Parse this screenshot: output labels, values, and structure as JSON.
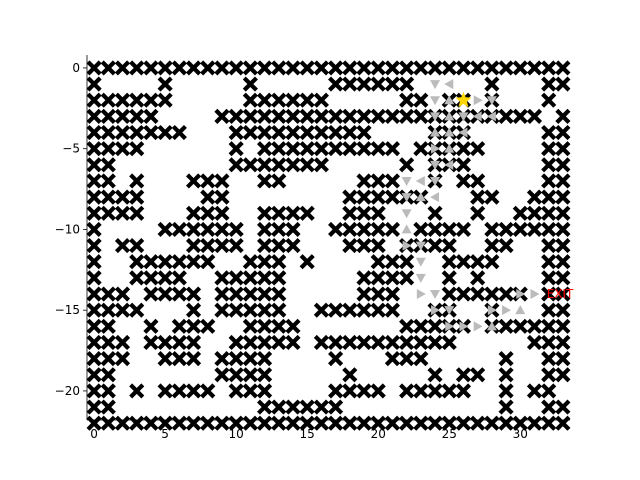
{
  "chart_data": {
    "type": "scatter",
    "title": "",
    "xlabel": "",
    "ylabel": "",
    "xlim": [
      -0.5,
      33.5
    ],
    "ylim": [
      -21.8,
      0.8
    ],
    "grid": false,
    "x_ticks": [
      0,
      5,
      10,
      15,
      20,
      25,
      30
    ],
    "y_ticks": [
      0,
      -5,
      -10,
      -15,
      -20
    ],
    "x_tick_labels": [
      "0",
      "5",
      "10",
      "15",
      "20",
      "25",
      "30"
    ],
    "y_tick_labels": [
      "0",
      "−5",
      "−10",
      "−15",
      "−20"
    ],
    "wall_color": "#000000",
    "path_color": "#bbbbbb",
    "start_color": "#ffd700",
    "exit_color": "#ff0000",
    "walls": [
      "##################################",
      "#....#.....#.....######.....#...##",
      "######.....######.....##.##.#...#",
      "#####....#######################.#",
      "#######...##########....###.....##",
      "####......#.##########.#####....##",
      "##........#######.....#.###.....##",
      "##.#...###..##.....###..#.##....##",
      "####....##........######...##..###",
      "####...###..####..###...#..#..####",
      "#....######.###..#####.####.######",
      "#.##...####.###...###.####..##..##",
      "#..######..###.#....###..####...##",
      "#..####..#####.....####..#.#....##",
      "###.####.#####.....###...######.##",
      "####...#.#####..######..##..#...##",
      "##..#.###..####.......#####.######",
      "###.####..#####.##########.....###",
      "###..###.####....#...###.....#..##",
      "##.......####.....#.....#.##.#..##",
      "##.#.####.###....####.#####..#.##.",
      "##..........######...........#..##",
      "##################################"
    ],
    "path": [
      {
        "x": 24,
        "y": -1,
        "dir": "down"
      },
      {
        "x": 25,
        "y": -1,
        "dir": "left"
      },
      {
        "x": 24,
        "y": -2,
        "dir": "down"
      },
      {
        "x": 25,
        "y": -2,
        "dir": "up"
      },
      {
        "x": 27,
        "y": -2,
        "dir": "right"
      },
      {
        "x": 28,
        "y": -2,
        "dir": "down"
      },
      {
        "x": 24,
        "y": -3,
        "dir": "down"
      },
      {
        "x": 25,
        "y": -3,
        "dir": "up"
      },
      {
        "x": 26,
        "y": -3,
        "dir": "down"
      },
      {
        "x": 27,
        "y": -3,
        "dir": "left"
      },
      {
        "x": 28,
        "y": -3,
        "dir": "left"
      },
      {
        "x": 24,
        "y": -4,
        "dir": "up"
      },
      {
        "x": 25,
        "y": -4,
        "dir": "up"
      },
      {
        "x": 26,
        "y": -4,
        "dir": "left"
      },
      {
        "x": 24,
        "y": -5,
        "dir": "right"
      },
      {
        "x": 25,
        "y": -5,
        "dir": "up"
      },
      {
        "x": 24,
        "y": -6,
        "dir": "down"
      },
      {
        "x": 25,
        "y": -6,
        "dir": "left"
      },
      {
        "x": 22,
        "y": -7,
        "dir": "down"
      },
      {
        "x": 23,
        "y": -7,
        "dir": "left"
      },
      {
        "x": 24,
        "y": -7,
        "dir": "down"
      },
      {
        "x": 22,
        "y": -8,
        "dir": "down"
      },
      {
        "x": 23,
        "y": -8,
        "dir": "up"
      },
      {
        "x": 24,
        "y": -8,
        "dir": "left"
      },
      {
        "x": 22,
        "y": -9,
        "dir": "down"
      },
      {
        "x": 22,
        "y": -10,
        "dir": "up"
      },
      {
        "x": 22,
        "y": -11,
        "dir": "right"
      },
      {
        "x": 23,
        "y": -11,
        "dir": "down"
      },
      {
        "x": 23,
        "y": -12,
        "dir": "down"
      },
      {
        "x": 23,
        "y": -13,
        "dir": "down"
      },
      {
        "x": 23,
        "y": -14,
        "dir": "right"
      },
      {
        "x": 24,
        "y": -14,
        "dir": "down"
      },
      {
        "x": 30,
        "y": -14,
        "dir": "right"
      },
      {
        "x": 31,
        "y": -14,
        "dir": "right"
      },
      {
        "x": 24,
        "y": -15,
        "dir": "right"
      },
      {
        "x": 25,
        "y": -15,
        "dir": "down"
      },
      {
        "x": 28,
        "y": -15,
        "dir": "right"
      },
      {
        "x": 29,
        "y": -15,
        "dir": "right"
      },
      {
        "x": 30,
        "y": -15,
        "dir": "up"
      },
      {
        "x": 25,
        "y": -16,
        "dir": "right"
      },
      {
        "x": 26,
        "y": -16,
        "dir": "right"
      },
      {
        "x": 27,
        "y": -16,
        "dir": "right"
      },
      {
        "x": 28,
        "y": -16,
        "dir": "up"
      }
    ],
    "start": {
      "x": 26,
      "y": -2
    },
    "exit": {
      "x": 32,
      "y": -14,
      "label": "EXIT"
    }
  }
}
